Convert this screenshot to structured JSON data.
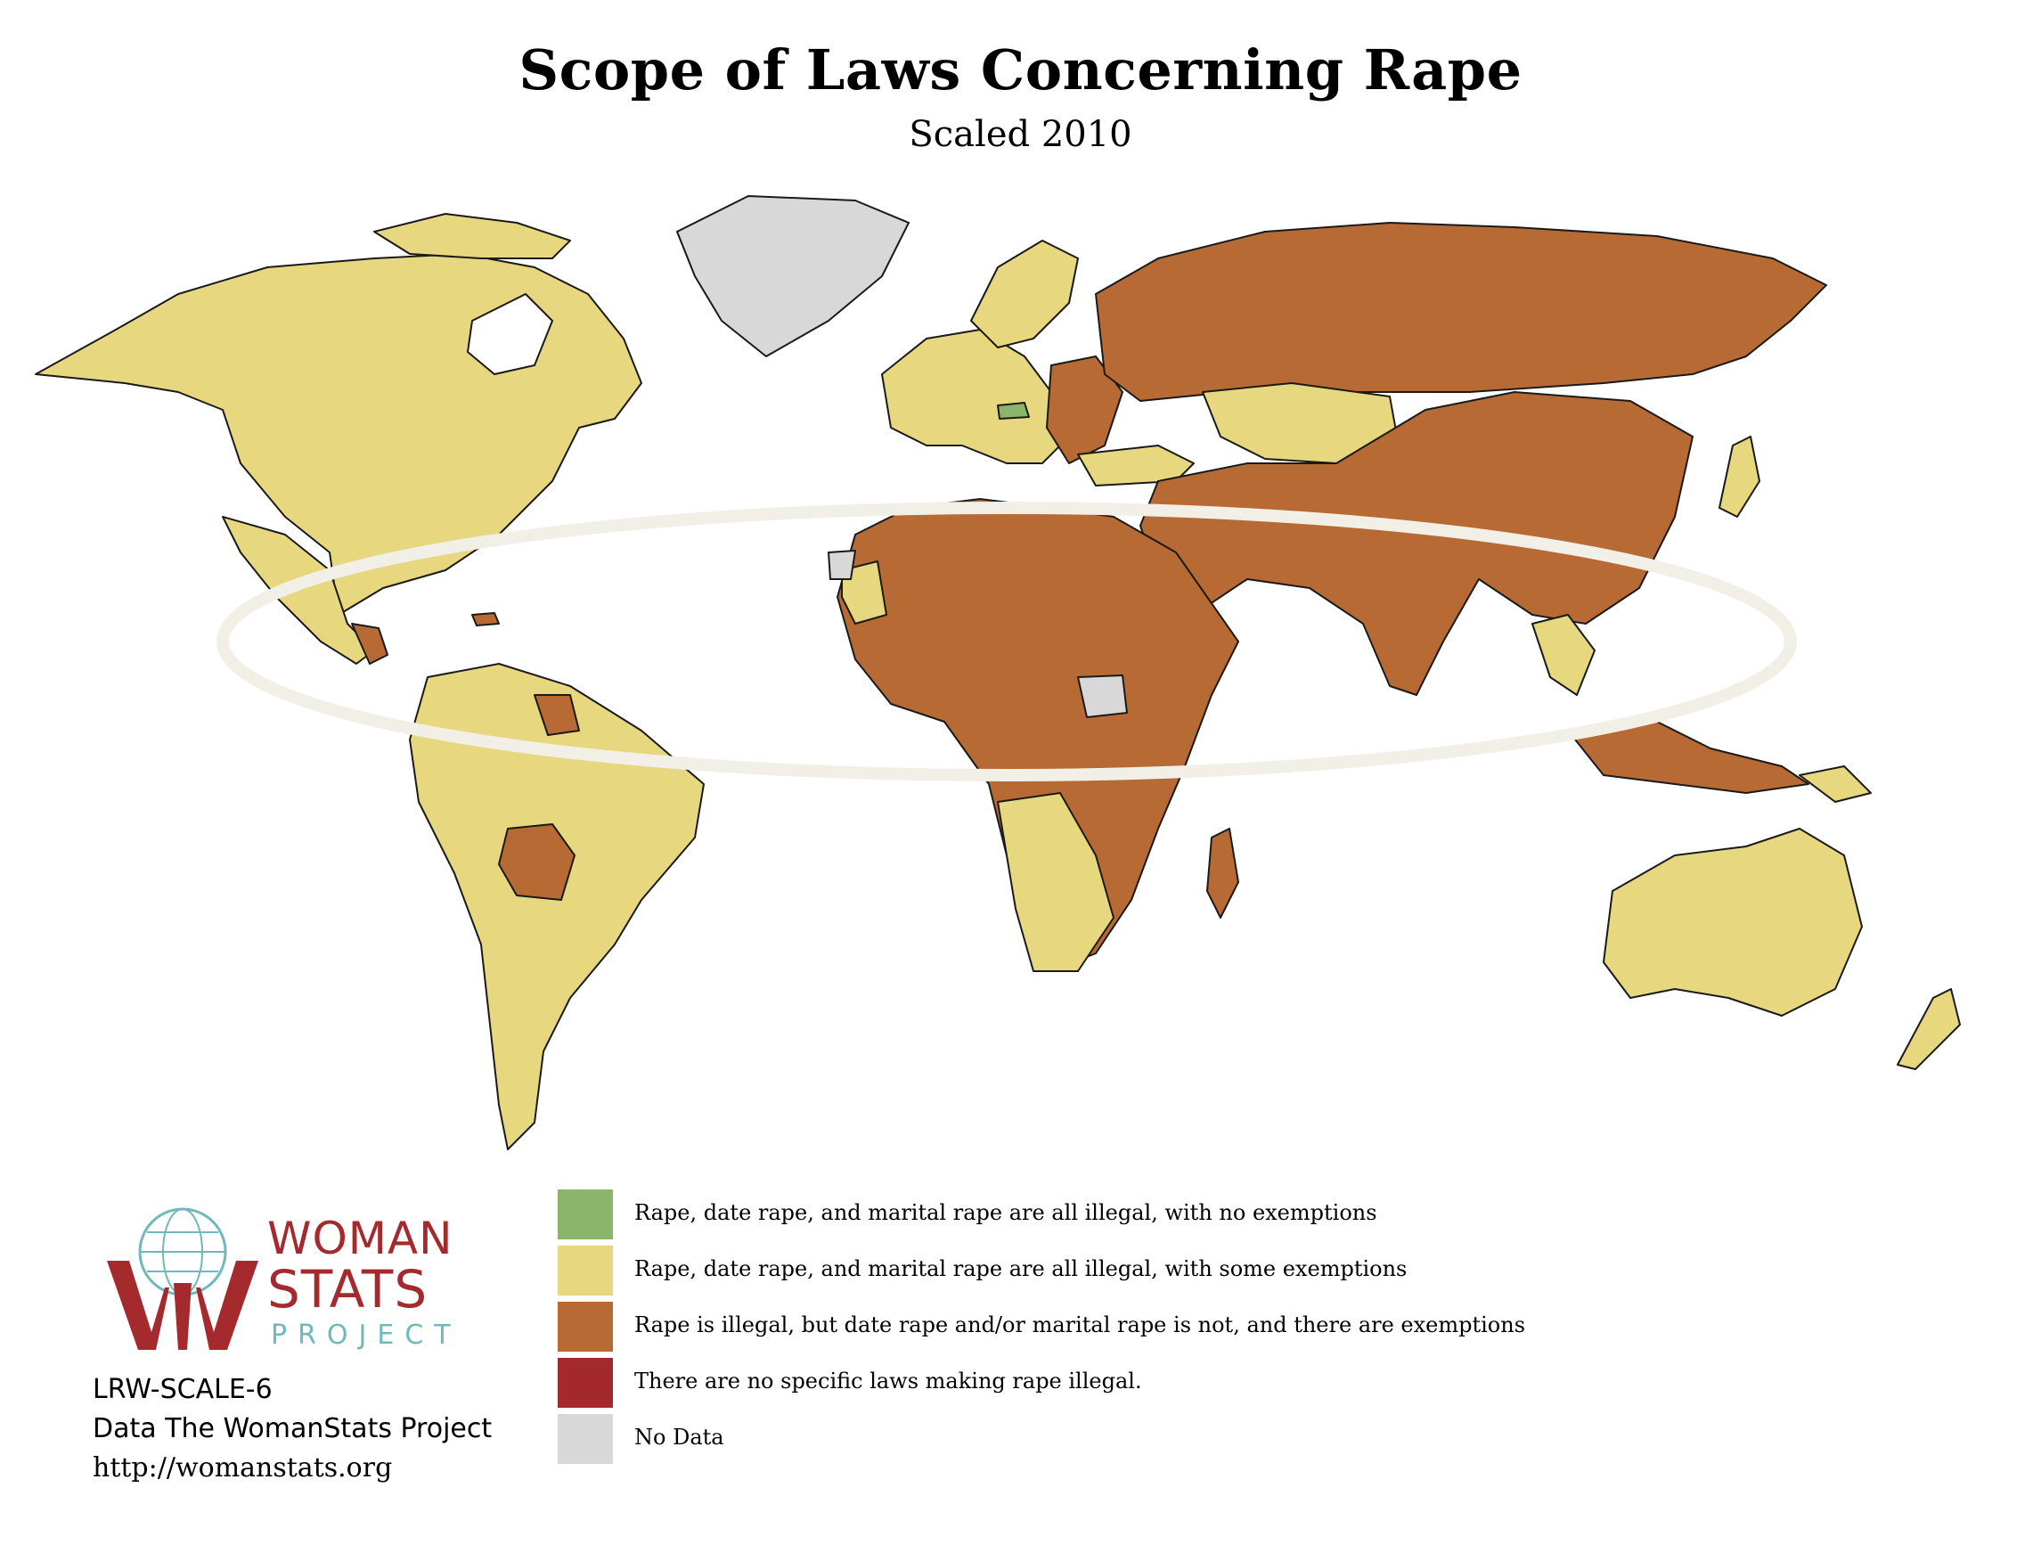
{
  "title": "Scope of Laws Concerning Rape",
  "subtitle": "Scaled 2010",
  "colors": {
    "none_exempt": "#8ab56a",
    "some_exempt": "#e7d87f",
    "partial": "#b76a33",
    "no_laws": "#a4292d",
    "no_data": "#d8d8d8",
    "border": "#1a1a1a"
  },
  "legend": [
    {
      "label": "Rape, date rape, and marital rape are all illegal, with no exemptions",
      "color": "#8ab56a"
    },
    {
      "label": "Rape, date rape, and marital rape are all illegal, with some exemptions",
      "color": "#e7d87f"
    },
    {
      "label": "Rape is illegal, but date rape and/or marital rape is not, and there are exemptions",
      "color": "#b76a33"
    },
    {
      "label": "There are no specific laws making rape illegal.",
      "color": "#a4292d"
    },
    {
      "label": "No Data",
      "color": "#d8d8d8"
    }
  ],
  "logo": {
    "line1": "WOMAN",
    "line2": "STATS",
    "line3": "PROJECT"
  },
  "credits": {
    "code": "LRW-SCALE-6",
    "source": "Data The WomanStats Project",
    "url": "http://womanstats.org"
  }
}
